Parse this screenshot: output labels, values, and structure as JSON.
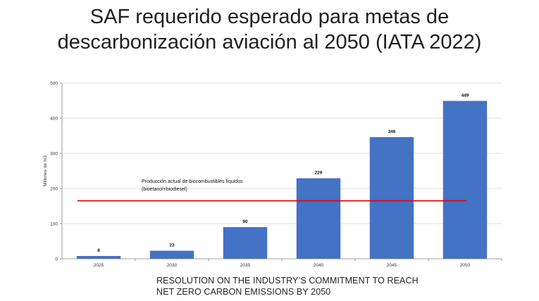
{
  "slide": {
    "title_line1": "SAF requerido esperado para metas de",
    "title_line2": "descarbonización aviación al 2050 (IATA 2022)",
    "caption_line1": "RESOLUTION ON THE INDUSTRY’S COMMITMENT TO REACH",
    "caption_line2": "NET ZERO CARBON EMISSIONS BY 2050"
  },
  "chart_data": {
    "type": "bar",
    "categories": [
      "2025",
      "2030",
      "2035",
      "2040",
      "2045",
      "2050"
    ],
    "values": [
      8,
      23,
      90,
      229,
      346,
      449
    ],
    "data_labels": [
      "8",
      "23",
      "90",
      "229",
      "346",
      "449"
    ],
    "xlabel": "",
    "ylabel": "Millones de m3",
    "ylim": [
      0,
      500
    ],
    "yticks": [
      0,
      100,
      200,
      300,
      400,
      500
    ],
    "ytick_labels": [
      "0",
      "100",
      "200",
      "300",
      "400",
      "500"
    ],
    "grid": true,
    "bar_color": "#4472c4",
    "reference_line": {
      "value": 165,
      "color": "#e8000b",
      "label_line1": "Producción actual de biocombustibles líquidos",
      "label_line2": "(bioetanol+biodiesel)"
    }
  }
}
